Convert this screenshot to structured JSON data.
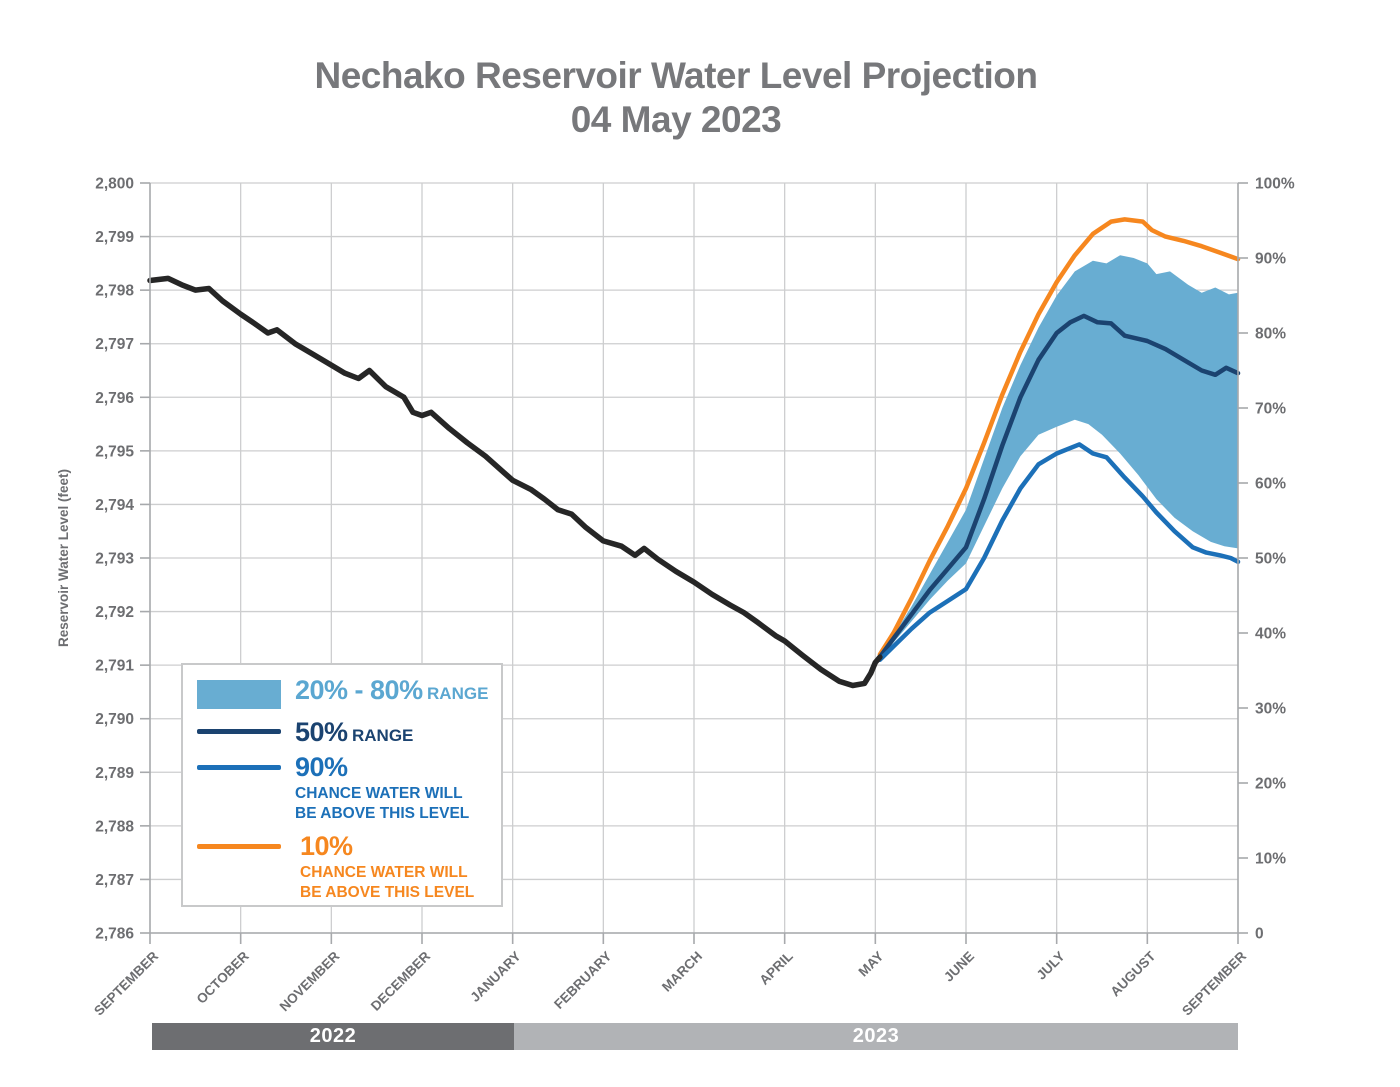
{
  "title": {
    "line1": "Nechako Reservoir Water Level Projection",
    "line2": "04 May 2023"
  },
  "colors": {
    "title_gray": "#77787b",
    "tick_gray": "#6d6e71",
    "gridline": "#cdcecf",
    "axis_line": "#a7a9ac",
    "observed_black": "#262626",
    "band_blue": "#68add2",
    "navy": "#1b4370",
    "blue": "#1c70b8",
    "orange": "#f6871f",
    "legend_band_text": "#5ba7d1",
    "year_bar_2022": "#6d6e71",
    "year_bar_2023": "#b1b3b6"
  },
  "legend": {
    "items": [
      {
        "swatch": "band-swatch",
        "label_big": "20% - 80%",
        "label_small": "RANGE"
      },
      {
        "swatch": "navy-line-swatch",
        "label_big": "50%",
        "label_small": "RANGE"
      },
      {
        "swatch": "blue-line-swatch",
        "label_big": "90%",
        "sub1": "CHANCE WATER WILL",
        "sub2": "BE ABOVE THIS LEVEL"
      },
      {
        "swatch": "orange-line-swatch",
        "label_big": "10%",
        "sub1": "CHANCE WATER WILL",
        "sub2": "BE ABOVE THIS LEVEL"
      }
    ]
  },
  "timeline": {
    "year_bars": [
      {
        "label": "2022",
        "start_month": 0,
        "end_month": 4,
        "color": "#6d6e71"
      },
      {
        "label": "2023",
        "start_month": 4,
        "end_month": 12,
        "color": "#b1b3b6"
      }
    ]
  },
  "chart_data": {
    "type": "line",
    "title": "Nechako Reservoir Water Level Projection 04 May 2023",
    "ylabel": "Reservoir Water Level (feet)",
    "ylim": [
      2786,
      2800
    ],
    "y2lim": [
      0,
      100
    ],
    "grid": true,
    "legend_position": "lower-left",
    "x_tick_labels": [
      "SEPTEMBER",
      "OCTOBER",
      "NOVEMBER",
      "DECEMBER",
      "JANUARY",
      "FEBRUARY",
      "MARCH",
      "APRIL",
      "MAY",
      "JUNE",
      "JULY",
      "AUGUST",
      "SEPTEMBER"
    ],
    "y_tick_labels_left": [
      "2,786",
      "2,787",
      "2,788",
      "2,789",
      "2,790",
      "2,791",
      "2,792",
      "2,793",
      "2,794",
      "2,795",
      "2,796",
      "2,797",
      "2,798",
      "2,799",
      "2,800"
    ],
    "y_tick_labels_right": [
      "0",
      "10%",
      "20%",
      "30%",
      "40%",
      "50%",
      "60%",
      "70%",
      "80%",
      "90%",
      "100%"
    ],
    "x_unit": "months_from_september_2022",
    "series": [
      {
        "name": "observed-water-level",
        "color": "#262626",
        "stroke_width": 5.5,
        "points": [
          [
            0,
            2798.18
          ],
          [
            0.2,
            2798.22
          ],
          [
            0.35,
            2798.1
          ],
          [
            0.5,
            2798.0
          ],
          [
            0.65,
            2798.03
          ],
          [
            0.8,
            2797.8
          ],
          [
            1.0,
            2797.55
          ],
          [
            1.15,
            2797.38
          ],
          [
            1.3,
            2797.2
          ],
          [
            1.4,
            2797.26
          ],
          [
            1.6,
            2797.0
          ],
          [
            1.8,
            2796.8
          ],
          [
            2.0,
            2796.6
          ],
          [
            2.15,
            2796.45
          ],
          [
            2.3,
            2796.35
          ],
          [
            2.42,
            2796.5
          ],
          [
            2.6,
            2796.2
          ],
          [
            2.8,
            2796.0
          ],
          [
            2.9,
            2795.72
          ],
          [
            3.0,
            2795.66
          ],
          [
            3.1,
            2795.72
          ],
          [
            3.3,
            2795.42
          ],
          [
            3.5,
            2795.15
          ],
          [
            3.7,
            2794.9
          ],
          [
            3.9,
            2794.6
          ],
          [
            4.0,
            2794.45
          ],
          [
            4.2,
            2794.28
          ],
          [
            4.35,
            2794.1
          ],
          [
            4.5,
            2793.9
          ],
          [
            4.65,
            2793.82
          ],
          [
            4.8,
            2793.58
          ],
          [
            5.0,
            2793.32
          ],
          [
            5.2,
            2793.22
          ],
          [
            5.35,
            2793.05
          ],
          [
            5.45,
            2793.18
          ],
          [
            5.6,
            2792.98
          ],
          [
            5.8,
            2792.75
          ],
          [
            6.0,
            2792.55
          ],
          [
            6.2,
            2792.32
          ],
          [
            6.4,
            2792.12
          ],
          [
            6.55,
            2791.98
          ],
          [
            6.7,
            2791.8
          ],
          [
            6.9,
            2791.55
          ],
          [
            7.0,
            2791.45
          ],
          [
            7.2,
            2791.18
          ],
          [
            7.4,
            2790.92
          ],
          [
            7.6,
            2790.7
          ],
          [
            7.75,
            2790.62
          ],
          [
            7.88,
            2790.66
          ],
          [
            7.95,
            2790.85
          ],
          [
            8.0,
            2791.05
          ],
          [
            8.05,
            2791.15
          ]
        ]
      },
      {
        "name": "projection-10pct-exceedance",
        "color": "#f6871f",
        "stroke_width": 4.5,
        "points": [
          [
            8.05,
            2791.2
          ],
          [
            8.2,
            2791.6
          ],
          [
            8.4,
            2792.25
          ],
          [
            8.6,
            2792.95
          ],
          [
            8.8,
            2793.6
          ],
          [
            9.0,
            2794.3
          ],
          [
            9.2,
            2795.15
          ],
          [
            9.4,
            2796.05
          ],
          [
            9.6,
            2796.85
          ],
          [
            9.8,
            2797.55
          ],
          [
            10.0,
            2798.15
          ],
          [
            10.2,
            2798.65
          ],
          [
            10.4,
            2799.05
          ],
          [
            10.6,
            2799.28
          ],
          [
            10.75,
            2799.32
          ],
          [
            10.95,
            2799.28
          ],
          [
            11.05,
            2799.12
          ],
          [
            11.2,
            2799.0
          ],
          [
            11.4,
            2798.92
          ],
          [
            11.6,
            2798.82
          ],
          [
            11.8,
            2798.7
          ],
          [
            12.0,
            2798.58
          ]
        ]
      },
      {
        "name": "projection-50pct-range",
        "color": "#1b4370",
        "stroke_width": 4.5,
        "points": [
          [
            8.05,
            2791.15
          ],
          [
            8.2,
            2791.5
          ],
          [
            8.4,
            2791.95
          ],
          [
            8.6,
            2792.4
          ],
          [
            8.8,
            2792.8
          ],
          [
            9.0,
            2793.2
          ],
          [
            9.2,
            2794.1
          ],
          [
            9.4,
            2795.1
          ],
          [
            9.6,
            2796.0
          ],
          [
            9.8,
            2796.7
          ],
          [
            10.0,
            2797.2
          ],
          [
            10.15,
            2797.4
          ],
          [
            10.3,
            2797.52
          ],
          [
            10.45,
            2797.4
          ],
          [
            10.6,
            2797.38
          ],
          [
            10.75,
            2797.15
          ],
          [
            11.0,
            2797.05
          ],
          [
            11.2,
            2796.9
          ],
          [
            11.4,
            2796.7
          ],
          [
            11.6,
            2796.5
          ],
          [
            11.75,
            2796.42
          ],
          [
            11.87,
            2796.55
          ],
          [
            12.0,
            2796.45
          ]
        ]
      },
      {
        "name": "projection-90pct-exceedance",
        "color": "#1c70b8",
        "stroke_width": 4.5,
        "points": [
          [
            8.05,
            2791.1
          ],
          [
            8.2,
            2791.35
          ],
          [
            8.4,
            2791.68
          ],
          [
            8.6,
            2791.98
          ],
          [
            8.8,
            2792.2
          ],
          [
            9.0,
            2792.42
          ],
          [
            9.2,
            2793.0
          ],
          [
            9.4,
            2793.7
          ],
          [
            9.6,
            2794.3
          ],
          [
            9.8,
            2794.75
          ],
          [
            10.0,
            2794.95
          ],
          [
            10.25,
            2795.12
          ],
          [
            10.4,
            2794.95
          ],
          [
            10.55,
            2794.88
          ],
          [
            10.75,
            2794.5
          ],
          [
            10.95,
            2794.15
          ],
          [
            11.1,
            2793.85
          ],
          [
            11.3,
            2793.5
          ],
          [
            11.5,
            2793.2
          ],
          [
            11.65,
            2793.1
          ],
          [
            11.8,
            2793.05
          ],
          [
            11.92,
            2793.0
          ],
          [
            12.0,
            2792.93
          ]
        ]
      }
    ],
    "band": {
      "name": "range-20-80pct",
      "color": "#68add2",
      "top": [
        [
          8.05,
          2791.22
        ],
        [
          8.2,
          2791.55
        ],
        [
          8.4,
          2792.1
        ],
        [
          8.6,
          2792.7
        ],
        [
          8.8,
          2793.3
        ],
        [
          9.0,
          2793.9
        ],
        [
          9.2,
          2794.85
        ],
        [
          9.4,
          2795.8
        ],
        [
          9.6,
          2796.6
        ],
        [
          9.8,
          2797.3
        ],
        [
          10.0,
          2797.9
        ],
        [
          10.2,
          2798.35
        ],
        [
          10.4,
          2798.55
        ],
        [
          10.55,
          2798.5
        ],
        [
          10.7,
          2798.65
        ],
        [
          10.85,
          2798.6
        ],
        [
          11.0,
          2798.5
        ],
        [
          11.1,
          2798.3
        ],
        [
          11.25,
          2798.35
        ],
        [
          11.45,
          2798.1
        ],
        [
          11.6,
          2797.95
        ],
        [
          11.75,
          2798.05
        ],
        [
          11.9,
          2797.92
        ],
        [
          12.0,
          2797.95
        ]
      ],
      "bottom": [
        [
          8.05,
          2791.08
        ],
        [
          8.2,
          2791.42
        ],
        [
          8.4,
          2791.82
        ],
        [
          8.6,
          2792.22
        ],
        [
          8.8,
          2792.58
        ],
        [
          9.0,
          2792.9
        ],
        [
          9.2,
          2793.6
        ],
        [
          9.4,
          2794.3
        ],
        [
          9.6,
          2794.9
        ],
        [
          9.8,
          2795.3
        ],
        [
          10.0,
          2795.45
        ],
        [
          10.2,
          2795.58
        ],
        [
          10.35,
          2795.5
        ],
        [
          10.5,
          2795.3
        ],
        [
          10.7,
          2794.95
        ],
        [
          10.9,
          2794.55
        ],
        [
          11.1,
          2794.1
        ],
        [
          11.3,
          2793.75
        ],
        [
          11.5,
          2793.5
        ],
        [
          11.7,
          2793.3
        ],
        [
          11.85,
          2793.22
        ],
        [
          12.0,
          2793.18
        ]
      ]
    }
  }
}
